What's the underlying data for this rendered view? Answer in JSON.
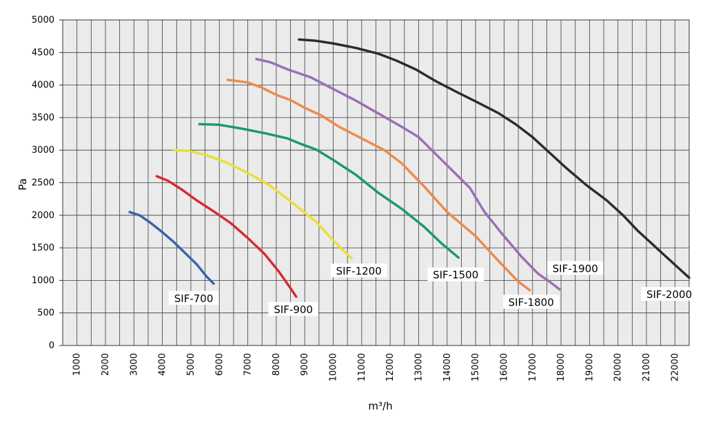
{
  "chart_data": {
    "type": "line",
    "title": "",
    "xlabel": "m³/h",
    "ylabel": "Pa",
    "xlim": [
      500,
      22500
    ],
    "ylim": [
      0,
      5000
    ],
    "x_ticks": [
      1000,
      2000,
      3000,
      4000,
      5000,
      6000,
      7000,
      8000,
      9000,
      10000,
      11000,
      12000,
      13000,
      14000,
      15000,
      16000,
      17000,
      18000,
      19000,
      20000,
      21000,
      22000
    ],
    "y_ticks": [
      0,
      500,
      1000,
      1500,
      2000,
      2500,
      3000,
      3500,
      4000,
      4500,
      5000
    ],
    "x_minor_step": 500,
    "grid": true,
    "legend": "none",
    "series": [
      {
        "name": "SIF-700",
        "color": "#3a63ad",
        "points": [
          [
            2850,
            2050
          ],
          [
            3200,
            2000
          ],
          [
            3600,
            1880
          ],
          [
            4000,
            1740
          ],
          [
            4400,
            1590
          ],
          [
            4800,
            1420
          ],
          [
            5200,
            1250
          ],
          [
            5550,
            1060
          ],
          [
            5800,
            950
          ]
        ]
      },
      {
        "name": "SIF-900",
        "color": "#d82b2b",
        "points": [
          [
            3800,
            2600
          ],
          [
            4200,
            2530
          ],
          [
            4700,
            2390
          ],
          [
            5200,
            2230
          ],
          [
            5800,
            2060
          ],
          [
            6400,
            1880
          ],
          [
            7000,
            1650
          ],
          [
            7600,
            1400
          ],
          [
            8100,
            1130
          ],
          [
            8500,
            880
          ],
          [
            8700,
            750
          ]
        ]
      },
      {
        "name": "SIF-1200",
        "color": "#e9df3a",
        "points": [
          [
            4400,
            3000
          ],
          [
            4900,
            2990
          ],
          [
            5500,
            2930
          ],
          [
            6200,
            2820
          ],
          [
            7000,
            2650
          ],
          [
            7800,
            2450
          ],
          [
            8600,
            2180
          ],
          [
            9400,
            1900
          ],
          [
            9900,
            1660
          ],
          [
            10400,
            1440
          ],
          [
            10650,
            1340
          ]
        ]
      },
      {
        "name": "SIF-1500",
        "color": "#1b9a6a",
        "points": [
          [
            5300,
            3400
          ],
          [
            6000,
            3390
          ],
          [
            6800,
            3330
          ],
          [
            7600,
            3260
          ],
          [
            8400,
            3180
          ],
          [
            8900,
            3090
          ],
          [
            9400,
            3010
          ],
          [
            10000,
            2850
          ],
          [
            10800,
            2620
          ],
          [
            11600,
            2340
          ],
          [
            12400,
            2100
          ],
          [
            13200,
            1820
          ],
          [
            13800,
            1570
          ],
          [
            14400,
            1350
          ]
        ]
      },
      {
        "name": "SIF-1800",
        "color": "#ed8a4d",
        "points": [
          [
            6300,
            4080
          ],
          [
            7000,
            4040
          ],
          [
            7500,
            3960
          ],
          [
            8000,
            3850
          ],
          [
            8500,
            3770
          ],
          [
            9000,
            3650
          ],
          [
            9600,
            3530
          ],
          [
            10200,
            3360
          ],
          [
            11000,
            3180
          ],
          [
            11800,
            3000
          ],
          [
            12400,
            2800
          ],
          [
            13200,
            2440
          ],
          [
            14000,
            2050
          ],
          [
            15000,
            1680
          ],
          [
            15800,
            1300
          ],
          [
            16500,
            980
          ],
          [
            16900,
            850
          ]
        ]
      },
      {
        "name": "SIF-1900",
        "color": "#9a6fb5",
        "points": [
          [
            7300,
            4400
          ],
          [
            7800,
            4350
          ],
          [
            8400,
            4240
          ],
          [
            9200,
            4120
          ],
          [
            10000,
            3940
          ],
          [
            10800,
            3760
          ],
          [
            11600,
            3560
          ],
          [
            12400,
            3360
          ],
          [
            13000,
            3200
          ],
          [
            13600,
            2940
          ],
          [
            14200,
            2680
          ],
          [
            14800,
            2420
          ],
          [
            15300,
            2060
          ],
          [
            15900,
            1730
          ],
          [
            16600,
            1370
          ],
          [
            17200,
            1100
          ],
          [
            17600,
            980
          ],
          [
            17950,
            860
          ]
        ]
      },
      {
        "name": "SIF-2000",
        "color": "#2c2c2c",
        "points": [
          [
            8800,
            4700
          ],
          [
            9400,
            4680
          ],
          [
            10000,
            4640
          ],
          [
            10800,
            4570
          ],
          [
            11600,
            4480
          ],
          [
            12200,
            4380
          ],
          [
            12900,
            4240
          ],
          [
            13600,
            4060
          ],
          [
            14400,
            3880
          ],
          [
            15000,
            3750
          ],
          [
            15800,
            3570
          ],
          [
            16400,
            3400
          ],
          [
            17000,
            3200
          ],
          [
            17600,
            2960
          ],
          [
            18200,
            2720
          ],
          [
            18900,
            2460
          ],
          [
            19600,
            2230
          ],
          [
            20200,
            1990
          ],
          [
            20700,
            1760
          ],
          [
            21200,
            1560
          ],
          [
            21600,
            1400
          ],
          [
            22100,
            1200
          ],
          [
            22500,
            1040
          ]
        ]
      }
    ],
    "labels": [
      {
        "text": "SIF-700",
        "x": 5100,
        "y": 700
      },
      {
        "text": "SIF-900",
        "x": 8600,
        "y": 530
      },
      {
        "text": "SIF-1200",
        "x": 10900,
        "y": 1120
      },
      {
        "text": "SIF-1500",
        "x": 14300,
        "y": 1060
      },
      {
        "text": "SIF-1800",
        "x": 16950,
        "y": 640
      },
      {
        "text": "SIF-1900",
        "x": 18500,
        "y": 1160
      },
      {
        "text": "SIF-2000",
        "x": 21800,
        "y": 760
      }
    ]
  }
}
